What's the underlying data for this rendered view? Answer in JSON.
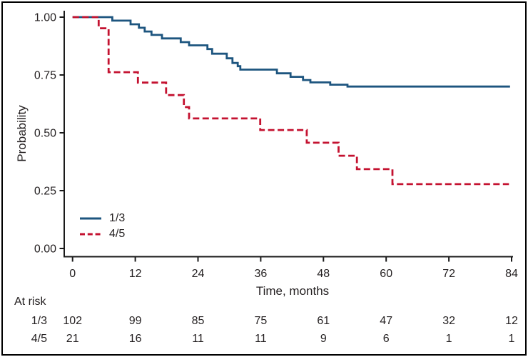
{
  "figure": {
    "description": "Kaplan-Meier survival plot with number at risk table",
    "background_color": "#ffffff",
    "border_color": "#000000",
    "axis_color": "#1a1a1a",
    "text_color": "#231f20"
  },
  "chart_data": {
    "type": "line",
    "subtype": "kaplan-meier step curves",
    "title": "",
    "xlabel": "Time, months",
    "ylabel": "Probability",
    "xlim": [
      0,
      84
    ],
    "ylim": [
      0.0,
      1.0
    ],
    "grid": false,
    "legend_position": "inside lower left",
    "x_ticks": [
      {
        "label": "0",
        "value": 0
      },
      {
        "label": "12",
        "value": 12
      },
      {
        "label": "24",
        "value": 24
      },
      {
        "label": "36",
        "value": 36
      },
      {
        "label": "48",
        "value": 48
      },
      {
        "label": "60",
        "value": 60
      },
      {
        "label": "72",
        "value": 72
      },
      {
        "label": "84",
        "value": 84
      }
    ],
    "y_ticks": [
      {
        "label": "0.00",
        "value": 0.0
      },
      {
        "label": "0.25",
        "value": 0.25
      },
      {
        "label": "0.50",
        "value": 0.5
      },
      {
        "label": "0.75",
        "value": 0.75
      },
      {
        "label": "1.00",
        "value": 1.0
      }
    ],
    "series": [
      {
        "name": "1/3",
        "color": "#1d557f",
        "line_style": "solid",
        "end_time": 83.7,
        "steps": [
          [
            0,
            1.0
          ],
          [
            7.6,
            0.985
          ],
          [
            11.1,
            0.969
          ],
          [
            12.7,
            0.954
          ],
          [
            13.8,
            0.938
          ],
          [
            15.1,
            0.923
          ],
          [
            17.1,
            0.908
          ],
          [
            20.7,
            0.892
          ],
          [
            22.3,
            0.878
          ],
          [
            25.8,
            0.862
          ],
          [
            26.7,
            0.842
          ],
          [
            29.5,
            0.822
          ],
          [
            30.6,
            0.802
          ],
          [
            31.6,
            0.788
          ],
          [
            32.1,
            0.773
          ],
          [
            39.1,
            0.757
          ],
          [
            41.7,
            0.742
          ],
          [
            44.1,
            0.728
          ],
          [
            45.5,
            0.718
          ],
          [
            49.3,
            0.708
          ],
          [
            52.6,
            0.7
          ]
        ]
      },
      {
        "name": "4/5",
        "color": "#c41230",
        "line_style": "dashed",
        "end_time": 83.5,
        "steps": [
          [
            0,
            1.0
          ],
          [
            5.0,
            0.952
          ],
          [
            6.9,
            0.762
          ],
          [
            12.5,
            0.717
          ],
          [
            17.9,
            0.663
          ],
          [
            21.3,
            0.611
          ],
          [
            22.3,
            0.562
          ],
          [
            35.9,
            0.512
          ],
          [
            44.8,
            0.457
          ],
          [
            50.9,
            0.401
          ],
          [
            54.4,
            0.343
          ],
          [
            61.2,
            0.278
          ]
        ]
      }
    ],
    "at_risk": {
      "title": "At risk",
      "times": [
        0,
        12,
        24,
        36,
        48,
        60,
        72,
        84
      ],
      "rows": [
        {
          "label": "1/3",
          "counts": [
            102,
            99,
            85,
            75,
            61,
            47,
            32,
            12
          ]
        },
        {
          "label": "4/5",
          "counts": [
            21,
            16,
            11,
            11,
            9,
            6,
            1,
            1
          ]
        }
      ]
    }
  }
}
